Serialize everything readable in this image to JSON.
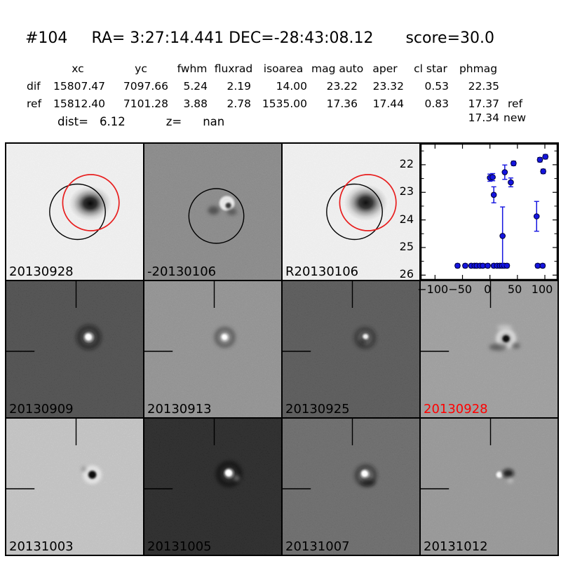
{
  "header": {
    "id": "#104",
    "coords": "RA= 3:27:14.441 DEC=-28:43:08.12",
    "score": "score=30.0"
  },
  "table": {
    "columns": [
      "",
      "xc",
      "yc",
      "fwhm",
      "fluxrad",
      "isoarea",
      "mag auto",
      "aper",
      "cl star",
      "phmag",
      ""
    ],
    "rows": [
      {
        "cells": [
          "dif",
          "15807.47",
          "7097.66",
          "5.24",
          "2.19",
          "14.00",
          "23.22",
          "23.32",
          "0.53",
          "22.35",
          ""
        ]
      },
      {
        "cells": [
          "ref",
          "15812.40",
          "7101.28",
          "3.88",
          "2.78",
          "1535.00",
          "17.36",
          "17.44",
          "0.83",
          "17.37",
          "ref"
        ]
      }
    ],
    "extra_phmag": {
      "value": "17.34",
      "suffix": "new"
    },
    "dist": {
      "label": "dist=",
      "value": "6.12"
    },
    "z": {
      "label": "z=",
      "value": "nan"
    }
  },
  "stamps": [
    {
      "label": "20130928",
      "bg": "#fbfbfb",
      "label_color": "#000000",
      "kind": "new image with apertures"
    },
    {
      "label": "-20130106",
      "bg": "#8f8f8f",
      "label_color": "#000000",
      "kind": "difference image with aperture"
    },
    {
      "label": "R20130106",
      "bg": "#fbfbfb",
      "label_color": "#000000",
      "kind": "reference image with apertures"
    },
    {
      "label": "",
      "bg": "#ffffff",
      "label_color": "#000000",
      "kind": "lightcurve plot"
    },
    {
      "label": "20130909",
      "bg": "#474747",
      "label_color": "#000000",
      "kind": "diff stamp"
    },
    {
      "label": "20130913",
      "bg": "#9a9a9a",
      "label_color": "#000000",
      "kind": "diff stamp"
    },
    {
      "label": "20130925",
      "bg": "#545454",
      "label_color": "#000000",
      "kind": "diff stamp"
    },
    {
      "label": "20130928",
      "bg": "#a8a8a8",
      "label_color": "#ff0000",
      "kind": "diff stamp (current epoch)"
    },
    {
      "label": "20131003",
      "bg": "#d2d2d2",
      "label_color": "#000000",
      "kind": "diff stamp"
    },
    {
      "label": "20131005",
      "bg": "#1f1f1f",
      "label_color": "#000000",
      "kind": "diff stamp"
    },
    {
      "label": "20131007",
      "bg": "#6a6a6a",
      "label_color": "#000000",
      "kind": "diff stamp"
    },
    {
      "label": "20131012",
      "bg": "#9f9f9f",
      "label_color": "#000000",
      "kind": "diff stamp"
    }
  ],
  "aperture_colors": {
    "ref_circle": "#000000",
    "new_circle": "#e81e1e"
  },
  "chart_data": {
    "type": "scatter",
    "title": "",
    "xlabel": "",
    "ylabel": "",
    "legend": false,
    "grid": false,
    "x_ticks": [
      -100,
      -50,
      0,
      50,
      100
    ],
    "y_ticks": [
      22,
      23,
      24,
      25,
      26
    ],
    "xlim": [
      -126,
      123
    ],
    "ylim_top_to_bottom": [
      21.24,
      26.17
    ],
    "y_axis_inverted": true,
    "marker_color": "#1414e0",
    "marker_edge": "#000033",
    "points": [
      [
        0,
        22.47,
        0.13
      ],
      [
        5,
        22.45,
        0.13
      ],
      [
        7,
        23.09,
        0.29
      ],
      [
        23,
        24.58,
        1.05
      ],
      [
        27,
        22.27,
        0.26
      ],
      [
        38,
        22.64,
        0.16
      ],
      [
        43,
        21.95,
        0.08
      ],
      [
        85,
        23.87,
        0.54
      ],
      [
        91,
        21.82,
        0.08
      ],
      [
        97,
        22.24,
        0.08
      ],
      [
        101,
        21.71,
        0.08
      ]
    ],
    "nondetections": {
      "mag": 25.66,
      "err": 0.07,
      "x": [
        -59,
        -45,
        -34,
        -28,
        -24,
        -18,
        -13,
        -4,
        7,
        13,
        18,
        22,
        26,
        31,
        87,
        96
      ]
    }
  }
}
